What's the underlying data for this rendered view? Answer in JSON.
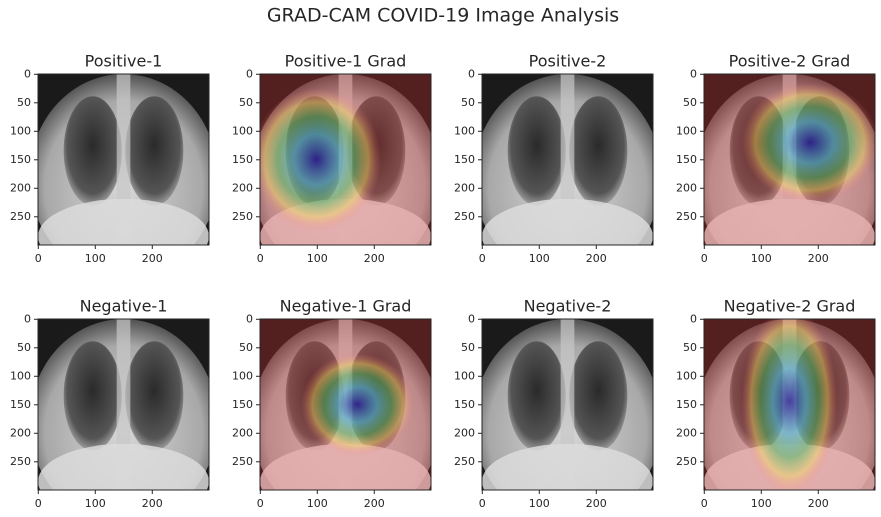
{
  "title": "GRAD-CAM COVID-19 Image Analysis",
  "chart_data": [
    {
      "type": "image",
      "title": "Positive-1",
      "xlim": [
        -0.5,
        299.5
      ],
      "ylim": [
        299.5,
        -0.5
      ],
      "xticks": [
        0,
        100,
        200
      ],
      "yticks": [
        0,
        50,
        100,
        150,
        200,
        250
      ]
    },
    {
      "type": "image",
      "title": "Positive-1 Grad",
      "xlim": [
        -0.5,
        299.5
      ],
      "ylim": [
        299.5,
        -0.5
      ],
      "xticks": [
        0,
        100,
        200
      ],
      "yticks": [
        0,
        50,
        100,
        150,
        200,
        250
      ]
    },
    {
      "type": "image",
      "title": "Positive-2",
      "xlim": [
        -0.5,
        299.5
      ],
      "ylim": [
        299.5,
        -0.5
      ],
      "xticks": [
        0,
        100,
        200
      ],
      "yticks": [
        0,
        50,
        100,
        150,
        200,
        250
      ]
    },
    {
      "type": "image",
      "title": "Positive-2 Grad",
      "xlim": [
        -0.5,
        299.5
      ],
      "ylim": [
        299.5,
        -0.5
      ],
      "xticks": [
        0,
        100,
        200
      ],
      "yticks": [
        0,
        50,
        100,
        150,
        200,
        250
      ]
    },
    {
      "type": "image",
      "title": "Negative-1",
      "xlim": [
        -0.5,
        299.5
      ],
      "ylim": [
        299.5,
        -0.5
      ],
      "xticks": [
        0,
        100,
        200
      ],
      "yticks": [
        0,
        50,
        100,
        150,
        200,
        250
      ]
    },
    {
      "type": "image",
      "title": "Negative-1 Grad",
      "xlim": [
        -0.5,
        299.5
      ],
      "ylim": [
        299.5,
        -0.5
      ],
      "xticks": [
        0,
        100,
        200
      ],
      "yticks": [
        0,
        50,
        100,
        150,
        200,
        250
      ]
    },
    {
      "type": "image",
      "title": "Negative-2",
      "xlim": [
        -0.5,
        299.5
      ],
      "ylim": [
        299.5,
        -0.5
      ],
      "xticks": [
        0,
        100,
        200
      ],
      "yticks": [
        0,
        50,
        100,
        150,
        200,
        250
      ]
    },
    {
      "type": "image",
      "title": "Negative-2 Grad",
      "xlim": [
        -0.5,
        299.5
      ],
      "ylim": [
        299.5,
        -0.5
      ],
      "xticks": [
        0,
        100,
        200
      ],
      "yticks": [
        0,
        50,
        100,
        150,
        200,
        250
      ]
    }
  ]
}
